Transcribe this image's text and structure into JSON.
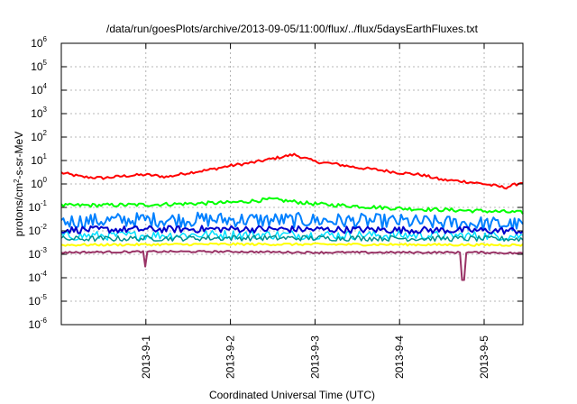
{
  "chart_data": {
    "type": "line",
    "title": "/data/run/goesPlots/archive/2013-09-05/11:00/flux/../flux/5daysEarthFluxes.txt",
    "xlabel": "Coordinated Universal Time (UTC)",
    "ylabel": {
      "base": "protons/cm",
      "sup": "2",
      "rest": "-s-sr-MeV"
    },
    "xlim": [
      "2013-08-31T00:00",
      "2013-09-05T11:00"
    ],
    "ylim": [
      1e-06,
      1000000.0
    ],
    "yscale": "log",
    "grid": true,
    "legend": "none",
    "x_ticks": [
      {
        "label": "2013-9-1",
        "x": "2013-09-01T00:00"
      },
      {
        "label": "2013-9-2",
        "x": "2013-09-02T00:00"
      },
      {
        "label": "2013-9-3",
        "x": "2013-09-03T00:00"
      },
      {
        "label": "2013-9-4",
        "x": "2013-09-04T00:00"
      },
      {
        "label": "2013-9-5",
        "x": "2013-09-05T00:00"
      }
    ],
    "y_ticks": [
      {
        "base": "10",
        "exp": "6",
        "value": 1000000.0
      },
      {
        "base": "10",
        "exp": "5",
        "value": 100000.0
      },
      {
        "base": "10",
        "exp": "4",
        "value": 10000.0
      },
      {
        "base": "10",
        "exp": "3",
        "value": 1000.0
      },
      {
        "base": "10",
        "exp": "2",
        "value": 100.0
      },
      {
        "base": "10",
        "exp": "1",
        "value": 10.0
      },
      {
        "base": "10",
        "exp": "0",
        "value": 1
      },
      {
        "base": "10",
        "exp": "-1",
        "value": 0.1
      },
      {
        "base": "10",
        "exp": "-2",
        "value": 0.01
      },
      {
        "base": "10",
        "exp": "-3",
        "value": 0.001
      },
      {
        "base": "10",
        "exp": "-4",
        "value": 0.0001
      },
      {
        "base": "10",
        "exp": "-5",
        "value": 1e-05
      },
      {
        "base": "10",
        "exp": "-6",
        "value": 1e-06
      }
    ],
    "series": [
      {
        "color": "#ff0000",
        "width": 2,
        "noise": 0.06,
        "x": [
          "2013-08-31T00:00",
          "2013-08-31T06:00",
          "2013-08-31T12:00",
          "2013-08-31T18:00",
          "2013-09-01T00:00",
          "2013-09-01T06:00",
          "2013-09-01T12:00",
          "2013-09-01T18:00",
          "2013-09-02T00:00",
          "2013-09-02T06:00",
          "2013-09-02T12:00",
          "2013-09-02T18:00",
          "2013-09-03T00:00",
          "2013-09-03T06:00",
          "2013-09-03T12:00",
          "2013-09-03T18:00",
          "2013-09-04T00:00",
          "2013-09-04T06:00",
          "2013-09-04T12:00",
          "2013-09-04T18:00",
          "2013-09-05T00:00",
          "2013-09-05T06:00",
          "2013-09-05T11:00"
        ],
        "values": [
          3.0,
          2.0,
          1.8,
          2.2,
          2.5,
          2.0,
          3.0,
          4.0,
          6.0,
          8.0,
          12.0,
          18.0,
          9.0,
          7.0,
          5.0,
          4.0,
          3.0,
          2.5,
          1.5,
          1.3,
          1.0,
          0.7,
          1.2
        ]
      },
      {
        "color": "#00ff00",
        "width": 2,
        "noise": 0.08,
        "x": [
          "2013-08-31T00:00",
          "2013-09-01T00:00",
          "2013-09-02T00:00",
          "2013-09-02T12:00",
          "2013-09-03T00:00",
          "2013-09-04T00:00",
          "2013-09-05T00:00",
          "2013-09-05T11:00"
        ],
        "values": [
          0.12,
          0.13,
          0.16,
          0.22,
          0.14,
          0.09,
          0.07,
          0.06
        ]
      },
      {
        "color": "#0080ff",
        "width": 2,
        "noise": 0.32,
        "x": [
          "2013-08-31T00:00",
          "2013-09-01T00:00",
          "2013-09-02T00:00",
          "2013-09-03T00:00",
          "2013-09-04T00:00",
          "2013-09-05T00:00",
          "2013-09-05T11:00"
        ],
        "values": [
          0.025,
          0.03,
          0.03,
          0.028,
          0.025,
          0.02,
          0.018
        ]
      },
      {
        "color": "#00e0ff",
        "width": 1.5,
        "noise": 0.2,
        "x": [
          "2013-08-31T00:00",
          "2013-09-02T00:00",
          "2013-09-04T00:00",
          "2013-09-05T11:00"
        ],
        "values": [
          0.006,
          0.007,
          0.0065,
          0.006
        ]
      },
      {
        "color": "#0000cc",
        "width": 2,
        "noise": 0.15,
        "x": [
          "2013-08-31T00:00",
          "2013-09-02T00:00",
          "2013-09-04T00:00",
          "2013-09-05T11:00"
        ],
        "values": [
          0.011,
          0.012,
          0.011,
          0.01
        ]
      },
      {
        "color": "#009090",
        "width": 1.5,
        "noise": 0.12,
        "x": [
          "2013-08-31T00:00",
          "2013-09-02T00:00",
          "2013-09-04T00:00",
          "2013-09-05T11:00"
        ],
        "values": [
          0.0045,
          0.005,
          0.0048,
          0.0045
        ]
      },
      {
        "color": "#ffff00",
        "width": 2,
        "noise": 0.05,
        "x": [
          "2013-08-31T00:00",
          "2013-09-02T00:00",
          "2013-09-04T00:00",
          "2013-09-05T11:00"
        ],
        "values": [
          0.0025,
          0.0027,
          0.0026,
          0.0025
        ]
      },
      {
        "color": "#993366",
        "width": 2,
        "noise": 0.04,
        "x": [
          "2013-08-31T00:00",
          "2013-09-01T00:00",
          "2013-09-02T00:00",
          "2013-09-03T00:00",
          "2013-09-04T00:00",
          "2013-09-05T00:00",
          "2013-09-05T11:00"
        ],
        "values": [
          0.0012,
          0.0013,
          0.0013,
          0.0012,
          0.0012,
          0.0012,
          0.0011
        ],
        "dips": [
          {
            "x": "2013-09-01T00:00",
            "value": 0.0003
          },
          {
            "x": "2013-09-04T18:00",
            "value": 8e-05
          }
        ]
      }
    ]
  }
}
